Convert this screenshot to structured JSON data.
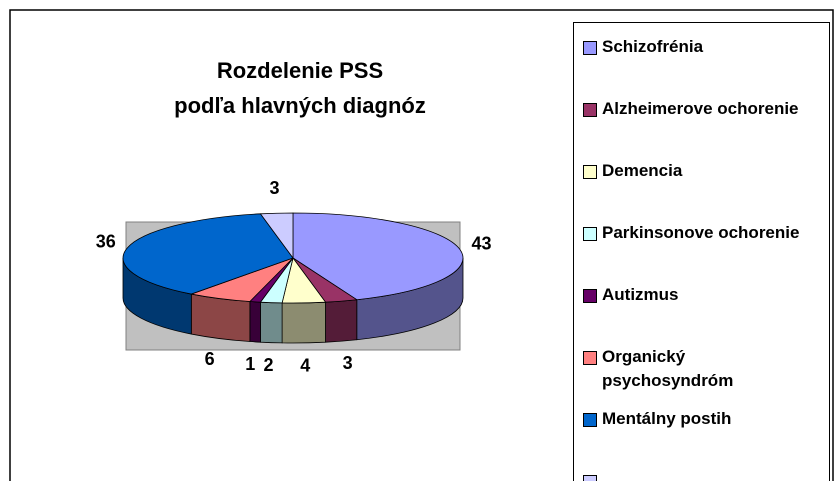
{
  "chart_data": {
    "type": "pie3d",
    "title": "Rozdelenie PSS\npodľa hlavných diagnóz",
    "categories": [
      "Schizofrénia",
      "Alzheimerove ochorenie",
      "Demencia",
      "Parkinsonove ochorenie",
      "Autizmus",
      "Organický psychosyndróm",
      "Mentálny postih",
      null
    ],
    "values": [
      43,
      3,
      4,
      2,
      1,
      6,
      36,
      3
    ],
    "colors": [
      "#9999ff",
      "#993366",
      "#ffffcc",
      "#ccffff",
      "#660066",
      "#ff8080",
      "#0066cc",
      "#ccccff"
    ],
    "legend": "right"
  }
}
